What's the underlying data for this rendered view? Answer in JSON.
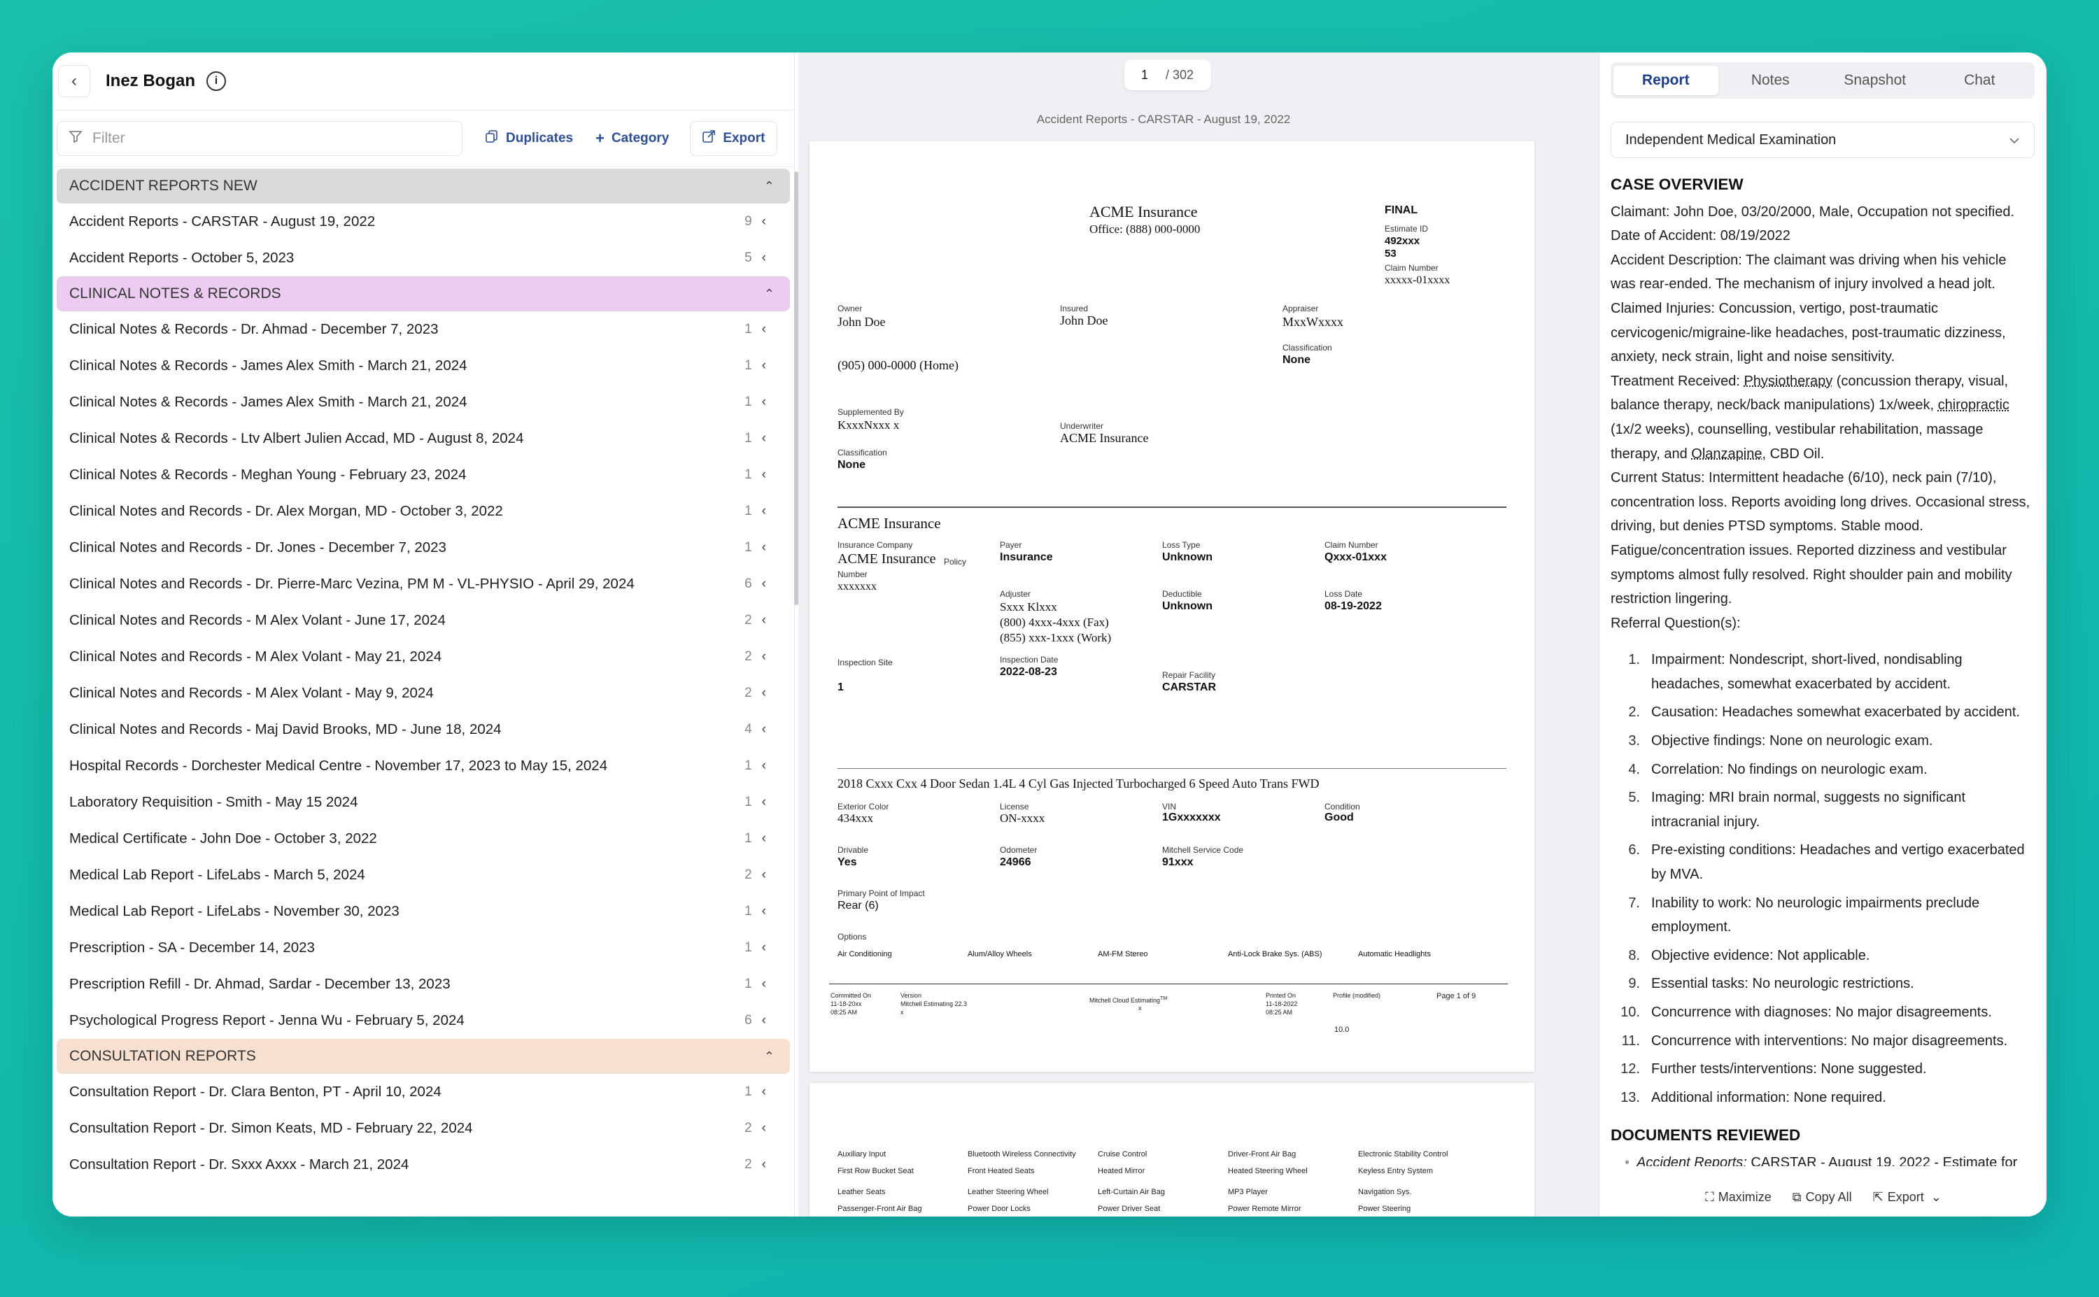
{
  "header": {
    "patient_name": "Inez Bogan"
  },
  "toolbar": {
    "filter_placeholder": "Filter",
    "duplicates": "Duplicates",
    "category": "Category",
    "export": "Export"
  },
  "sections": [
    {
      "title": "ACCIDENT REPORTS NEW",
      "color": "#d9d9d9",
      "items": [
        {
          "label": "Accident Reports - CARSTAR - August 19, 2022",
          "count": "9"
        },
        {
          "label": "Accident Reports - October 5, 2023",
          "count": "5"
        }
      ]
    },
    {
      "title": "CLINICAL NOTES & RECORDS",
      "color": "#ecccf1",
      "items": [
        {
          "label": "Clinical Notes & Records - Dr. Ahmad - December 7, 2023",
          "count": "1"
        },
        {
          "label": "Clinical Notes & Records - James Alex Smith - March 21, 2024",
          "count": "1"
        },
        {
          "label": "Clinical Notes & Records - James Alex Smith - March 21, 2024",
          "count": "1"
        },
        {
          "label": "Clinical Notes & Records - Ltv Albert Julien Accad, MD - August 8, 2024",
          "count": "1"
        },
        {
          "label": "Clinical Notes & Records - Meghan Young - February 23, 2024",
          "count": "1"
        },
        {
          "label": "Clinical Notes and Records - Dr. Alex Morgan, MD - October 3, 2022",
          "count": "1"
        },
        {
          "label": "Clinical Notes and Records - Dr. Jones - December 7, 2023",
          "count": "1"
        },
        {
          "label": "Clinical Notes and Records - Dr. Pierre-Marc Vezina, PM M - VL-PHYSIO - April 29, 2024",
          "count": "6"
        },
        {
          "label": "Clinical Notes and Records - M Alex Volant - June 17, 2024",
          "count": "2"
        },
        {
          "label": "Clinical Notes and Records - M Alex Volant - May 21, 2024",
          "count": "2"
        },
        {
          "label": "Clinical Notes and Records - M Alex Volant - May 9, 2024",
          "count": "2"
        },
        {
          "label": "Clinical Notes and Records - Maj David Brooks, MD - June 18, 2024",
          "count": "4"
        },
        {
          "label": "Hospital Records - Dorchester Medical Centre - November 17, 2023 to May 15, 2024",
          "count": "1"
        },
        {
          "label": "Laboratory Requisition - Smith - May 15 2024",
          "count": "1"
        },
        {
          "label": "Medical Certificate - John Doe - October 3, 2022",
          "count": "1"
        },
        {
          "label": "Medical Lab Report - LifeLabs - March 5, 2024",
          "count": "2"
        },
        {
          "label": "Medical Lab Report - LifeLabs - November 30, 2023",
          "count": "1"
        },
        {
          "label": "Prescription - SA - December 14, 2023",
          "count": "1"
        },
        {
          "label": "Prescription Refill - Dr. Ahmad, Sardar - December 13, 2023",
          "count": "1"
        },
        {
          "label": "Psychological Progress Report - Jenna Wu - February 5, 2024",
          "count": "6"
        }
      ]
    },
    {
      "title": "CONSULTATION REPORTS",
      "color": "#f7e0cf",
      "items": [
        {
          "label": "Consultation Report - Dr. Clara Benton, PT - April 10, 2024",
          "count": "1"
        },
        {
          "label": "Consultation Report - Dr. Simon Keats, MD - February 22, 2024",
          "count": "2"
        },
        {
          "label": "Consultation Report - Dr. Sxxx Axxx - March 21, 2024",
          "count": "2"
        }
      ]
    }
  ],
  "viewer": {
    "page_current": "1",
    "page_total": "/ 302",
    "doc_title": "Accident Reports - CARSTAR - August 19, 2022",
    "estimate": {
      "company": "ACME Insurance",
      "office": "Office: (888) 000-0000",
      "status": "FINAL",
      "estimate_id_label": "Estimate ID",
      "estimate_id_value": "492xxx",
      "estimate_id_value2": "53",
      "claim_number_label": "Claim Number",
      "claim_number_value": "xxxxx-01xxxx",
      "owner_label": "Owner",
      "owner_value": "John Doe",
      "insured_label": "Insured",
      "insured_value": "John Doe",
      "appraiser_label": "Appraiser",
      "appraiser_value": "MxxWxxxx",
      "classification_label": "Classification",
      "classification_value": "None",
      "phone": "(905) 000-0000 (Home)",
      "supplemented_label": "Supplemented By",
      "supplemented_value": "KxxxNxxx x",
      "underwriter_label": "Underwriter",
      "underwriter_value": "ACME Insurance",
      "classification2_label": "Classification",
      "classification2_value": "None",
      "section2_title": "ACME Insurance",
      "ins_company_label": "Insurance Company",
      "ins_company_value": "ACME Insurance",
      "policy_label": "Policy",
      "number_label": "Number",
      "policy_value": "xxxxxxx",
      "payer_label": "Payer",
      "payer_value": "Insurance",
      "loss_type_label": "Loss Type",
      "loss_type_value": "Unknown",
      "claim_number2_label": "Claim Number",
      "claim_number2_value": "Qxxx-01xxx",
      "adjuster_label": "Adjuster",
      "adjuster_value": "Sxxx Klxxx",
      "adjuster_fax": "(800) 4xxx-4xxx (Fax)",
      "adjuster_work": "(855) xxx-1xxx (Work)",
      "deductible_label": "Deductible",
      "deductible_value": "Unknown",
      "loss_date_label": "Loss Date",
      "loss_date_value": "08-19-2022",
      "inspection_site_label": "Inspection Site",
      "inspection_site_value": "1",
      "inspection_date_label": "Inspection Date",
      "inspection_date_value": "2022-08-23",
      "repair_label": "Repair Facility",
      "repair_value": "CARSTAR",
      "vehicle": "2018 Cxxx Cxx 4 Door Sedan 1.4L 4 Cyl Gas Injected Turbocharged 6 Speed Auto Trans FWD",
      "ext_color_label": "Exterior Color",
      "ext_color_value": "434xxx",
      "license_label": "License",
      "license_value": "ON-xxxx",
      "vin_label": "VIN",
      "vin_value": "1Gxxxxxxx",
      "condition_label": "Condition",
      "condition_value": "Good",
      "drivable_label": "Drivable",
      "drivable_value": "Yes",
      "odometer_label": "Odometer",
      "odometer_value": "24966",
      "msc_label": "Mitchell Service Code",
      "msc_value": "91xxx",
      "poi_label": "Primary Point of Impact",
      "poi_value": "Rear (6)",
      "options_label": "Options",
      "options": [
        "Air Conditioning",
        "Alum/Alloy Wheels",
        "AM-FM Stereo",
        "Anti-Lock Brake Sys. (ABS)",
        "Automatic Headlights"
      ],
      "footer_committed_label": "Committed On",
      "footer_committed_value": "11-18-20xx",
      "footer_committed_time": "08:25 AM",
      "footer_version_label": "Version",
      "footer_version_value": "Mitchell Estimating 22.3",
      "footer_version_sub": "x",
      "footer_cloud": "Mitchell Cloud Estimating",
      "footer_cloud_tm": "TM",
      "footer_cloud_sub": "x",
      "footer_printed_label": "Printed On",
      "footer_printed_value": "11-18-2022",
      "footer_printed_time": "08:25 AM",
      "footer_profile_label": "Profile (modified)",
      "footer_page": "Page 1 of 9",
      "footer_num": "10.0"
    },
    "page2_options": [
      [
        "Auxiliary Input",
        "Bluetooth Wireless Connectivity",
        "Cruise Control",
        "Driver-Front Air Bag",
        "Electronic Stability Control"
      ],
      [
        "First Row Bucket Seat",
        "Front Heated Seats",
        "Heated Mirror",
        "Heated Steering Wheel",
        "Keyless Entry System"
      ],
      [
        "Leather Seats",
        "Leather Steering Wheel",
        "Left-Curtain Air Bag",
        "MP3 Player",
        "Navigation Sys."
      ],
      [
        "Passenger-Front Air Bag",
        "Power Door Locks",
        "Power Driver Seat",
        "Power Remote Mirror",
        "Power Steering"
      ]
    ]
  },
  "right": {
    "tabs": [
      "Report",
      "Notes",
      "Snapshot",
      "Chat"
    ],
    "active_tab": "Report",
    "template": "Independent Medical Examination",
    "overview_title": "CASE OVERVIEW",
    "claimant": "Claimant: John Doe, 03/20/2000, Male, Occupation not specified.",
    "date_of_accident": "Date of Accident: 08/19/2022",
    "accident_description": "Accident Description: The claimant was driving when his vehicle was rear-ended. The mechanism of injury involved a head jolt.",
    "claimed_injuries": "Claimed Injuries: Concussion, vertigo, post-traumatic cervicogenic/migraine-like headaches, post-traumatic dizziness, anxiety, neck strain, light and noise sensitivity.",
    "treatment_prefix": "Treatment Received: ",
    "treatment_physio": "Physiotherapy",
    "treatment_mid": " (concussion therapy, visual, balance therapy, neck/back manipulations) 1x/week, ",
    "treatment_chiro": "chiropractic",
    "treatment_mid2": " (1x/2 weeks), counselling, vestibular rehabilitation, massage therapy, and ",
    "treatment_olanzapine": "Olanzapine",
    "treatment_end": ", CBD Oil.",
    "current_status": "Current Status: Intermittent headache (6/10), neck pain (7/10), concentration loss. Reports avoiding long drives. Occasional stress, driving, but denies PTSD symptoms. Stable mood. Fatigue/concentration issues. Reported dizziness and vestibular symptoms almost fully resolved. Right shoulder pain and mobility restriction lingering.",
    "referral_title": "Referral Question(s):",
    "referral": [
      "Impairment: Nondescript, short-lived, nondisabling headaches, somewhat exacerbated by accident.",
      "Causation: Headaches somewhat exacerbated by accident.",
      "Objective findings: None on neurologic exam.",
      "Correlation: No findings on neurologic exam.",
      "Imaging: MRI brain normal, suggests no significant intracranial injury.",
      "Pre-existing conditions: Headaches and vertigo exacerbated by MVA.",
      "Inability to work: No neurologic impairments preclude employment.",
      "Objective evidence: Not applicable.",
      "Essential tasks: No neurologic restrictions.",
      "Concurrence with diagnoses: No major disagreements.",
      "Concurrence with interventions: No major disagreements.",
      "Further tests/interventions: None suggested.",
      "Additional information: None required."
    ],
    "documents_title": "DOCUMENTS REVIEWED",
    "doc1_italic": "Accident Reports:",
    "doc1_rest": " CARSTAR - August 19, 2022 - Estimate for",
    "bottom": {
      "maximize": "Maximize",
      "copy_all": "Copy All",
      "export": "Export"
    }
  }
}
